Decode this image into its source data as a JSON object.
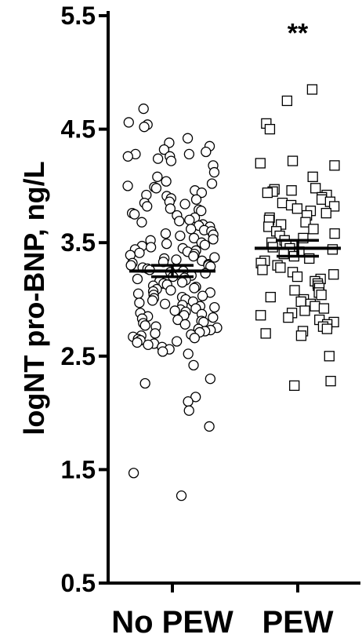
{
  "chart_data": {
    "type": "scatter",
    "ylabel": "logNT pro-BNP, ng/L",
    "ylim": [
      0.5,
      5.5
    ],
    "yticks": [
      "0.5",
      "1.5",
      "2.5",
      "3.5",
      "4.5",
      "5.5"
    ],
    "categories": [
      "No PEW",
      "PEW"
    ],
    "series": [
      {
        "name": "No PEW",
        "marker": "circle",
        "median": 3.25,
        "ci": [
          3.2,
          3.3
        ],
        "values": [
          4.68,
          4.56,
          4.54,
          4.52,
          4.42,
          4.38,
          4.35,
          4.32,
          4.3,
          4.28,
          4.28,
          4.26,
          4.26,
          4.24,
          4.22,
          4.18,
          4.12,
          4.08,
          4.04,
          4.02,
          4.0,
          3.99,
          3.98,
          3.96,
          3.94,
          3.92,
          3.91,
          3.89,
          3.88,
          3.86,
          3.85,
          3.84,
          3.82,
          3.8,
          3.79,
          3.78,
          3.76,
          3.75,
          3.74,
          3.72,
          3.7,
          3.69,
          3.68,
          3.66,
          3.65,
          3.64,
          3.62,
          3.61,
          3.6,
          3.58,
          3.57,
          3.56,
          3.54,
          3.53,
          3.52,
          3.5,
          3.49,
          3.48,
          3.47,
          3.46,
          3.45,
          3.44,
          3.43,
          3.42,
          3.41,
          3.4,
          3.39,
          3.38,
          3.37,
          3.36,
          3.35,
          3.34,
          3.33,
          3.32,
          3.31,
          3.3,
          3.3,
          3.29,
          3.28,
          3.27,
          3.26,
          3.25,
          3.24,
          3.23,
          3.22,
          3.21,
          3.2,
          3.19,
          3.18,
          3.17,
          3.16,
          3.15,
          3.14,
          3.13,
          3.12,
          3.11,
          3.1,
          3.09,
          3.08,
          3.07,
          3.06,
          3.05,
          3.04,
          3.03,
          3.02,
          3.01,
          3.0,
          2.99,
          2.98,
          2.97,
          2.96,
          2.95,
          2.94,
          2.93,
          2.92,
          2.91,
          2.9,
          2.89,
          2.88,
          2.87,
          2.86,
          2.85,
          2.84,
          2.83,
          2.82,
          2.81,
          2.8,
          2.79,
          2.78,
          2.77,
          2.76,
          2.75,
          2.74,
          2.73,
          2.72,
          2.71,
          2.7,
          2.69,
          2.68,
          2.67,
          2.66,
          2.65,
          2.64,
          2.63,
          2.62,
          2.61,
          2.6,
          2.58,
          2.56,
          2.54,
          2.52,
          2.42,
          2.3,
          2.26,
          2.14,
          2.1,
          2.02,
          1.88,
          1.47,
          1.27
        ]
      },
      {
        "name": "PEW",
        "marker": "square",
        "median": 3.45,
        "ci": [
          3.38,
          3.52
        ],
        "values": [
          4.85,
          4.75,
          4.55,
          4.5,
          4.22,
          4.2,
          4.18,
          4.08,
          3.98,
          3.97,
          3.96,
          3.95,
          3.94,
          3.92,
          3.9,
          3.88,
          3.86,
          3.85,
          3.83,
          3.82,
          3.8,
          3.78,
          3.76,
          3.74,
          3.72,
          3.7,
          3.68,
          3.66,
          3.64,
          3.62,
          3.6,
          3.58,
          3.56,
          3.54,
          3.52,
          3.5,
          3.48,
          3.46,
          3.45,
          3.44,
          3.42,
          3.4,
          3.38,
          3.36,
          3.34,
          3.32,
          3.3,
          3.28,
          3.26,
          3.24,
          3.22,
          3.2,
          3.18,
          3.16,
          3.14,
          3.12,
          3.1,
          3.08,
          3.06,
          3.04,
          3.02,
          3.0,
          2.98,
          2.96,
          2.94,
          2.92,
          2.9,
          2.88,
          2.86,
          2.84,
          2.82,
          2.8,
          2.78,
          2.76,
          2.74,
          2.72,
          2.7,
          2.68,
          2.5,
          2.28,
          2.24
        ]
      }
    ],
    "annotation": "**",
    "annotation_series": "PEW",
    "annotation_y": 5.35
  }
}
